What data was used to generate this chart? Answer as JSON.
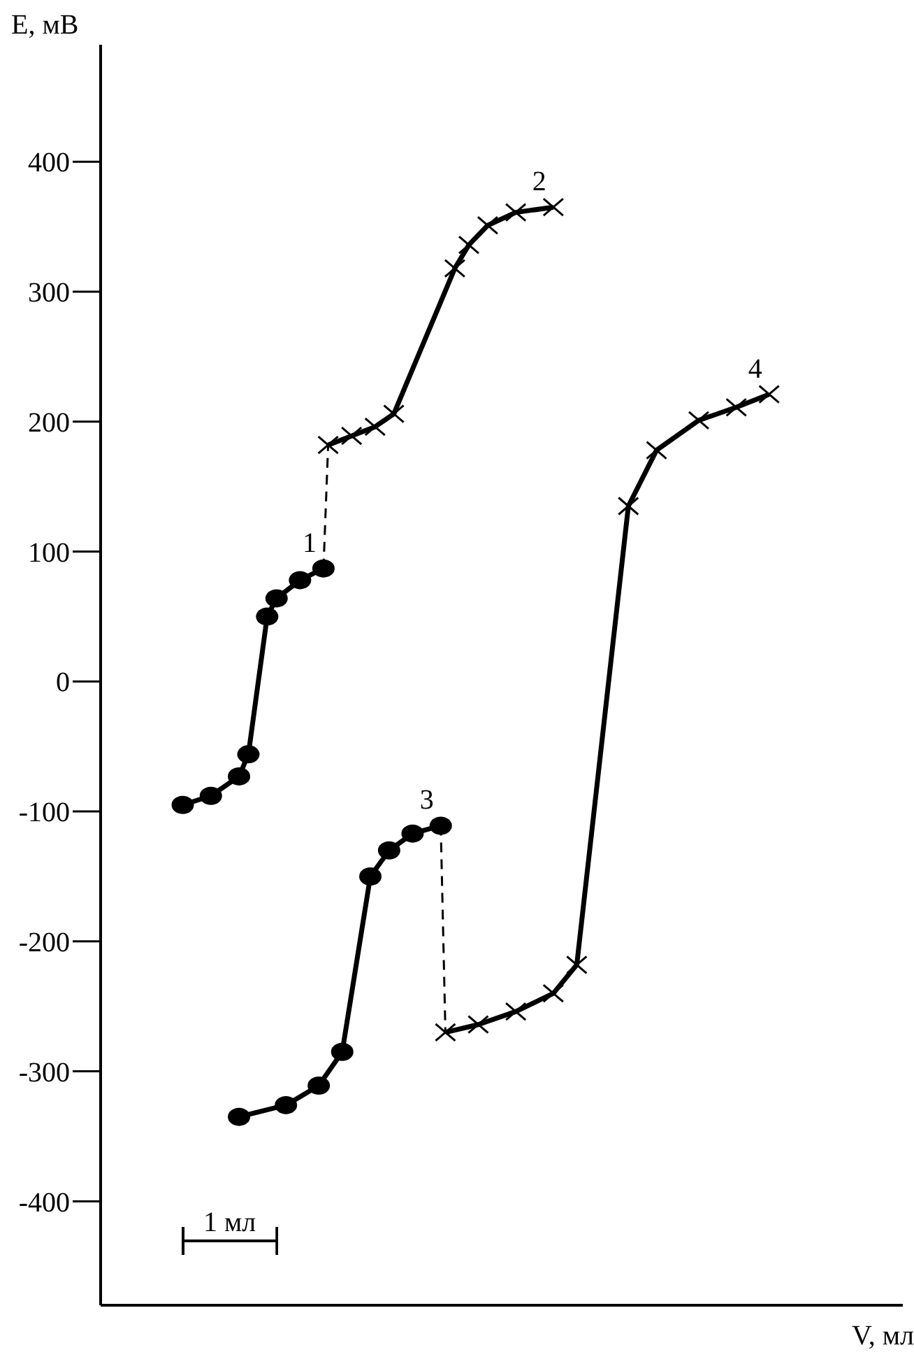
{
  "chart_data": {
    "type": "line",
    "xlabel": "V, мл",
    "ylabel": "E, мВ",
    "tick_labels": "y",
    "ylim": [
      -480,
      490
    ],
    "yticks": [
      -400,
      -300,
      -200,
      -100,
      0,
      100,
      200,
      300,
      400
    ],
    "legend": false,
    "annotations": [
      "1 мл"
    ],
    "categories": [
      null,
      null,
      null,
      null,
      null,
      null,
      null,
      null,
      null,
      null,
      null,
      null,
      null,
      null,
      null,
      null,
      null,
      null,
      null,
      null,
      null,
      null,
      null,
      null,
      null,
      null,
      null,
      null,
      null,
      null,
      null,
      null,
      null,
      null,
      null,
      null,
      null,
      null,
      null,
      null,
      null,
      null,
      null,
      null,
      null,
      null,
      null,
      null,
      null,
      null,
      null,
      null,
      null,
      null,
      null,
      null,
      null,
      null,
      null,
      null,
      null,
      null,
      null,
      null,
      null,
      null,
      null,
      null,
      null,
      null,
      null,
      null,
      null,
      null,
      null,
      null,
      null,
      null,
      null,
      null,
      null,
      null,
      null,
      null,
      null,
      null,
      null,
      null,
      null,
      null,
      null,
      null,
      null,
      null,
      null,
      null,
      null,
      null,
      null,
      null,
      null,
      null,
      null,
      null,
      null,
      null,
      null,
      null,
      null,
      null,
      null,
      null,
      null,
      null,
      null,
      null,
      null,
      null,
      null,
      null,
      null,
      null,
      null,
      null,
      null,
      null,
      null,
      null,
      null,
      null,
      null,
      null,
      null,
      null,
      null,
      null,
      null,
      null,
      null,
      null,
      null,
      null,
      null,
      null,
      null,
      null,
      null,
      null,
      null,
      null,
      null,
      null,
      null,
      null,
      null,
      null,
      null,
      null,
      null,
      null,
      null,
      null,
      null,
      null,
      null,
      null,
      null,
      null,
      null,
      null,
      null
    ],
    "series": [
      {
        "name": "1",
        "color": "#000000",
        "marker": "circle",
        "values": [
          null,
          null,
          null,
          null,
          null,
          null,
          null,
          null,
          null,
          null,
          null,
          null,
          null,
          null,
          null,
          null,
          null,
          -95,
          null,
          null,
          null,
          null,
          null,
          -88,
          null,
          null,
          null,
          null,
          null,
          -73,
          null,
          -56,
          null,
          null,
          null,
          50,
          null,
          64,
          null,
          null,
          null,
          null,
          78,
          null,
          null,
          null,
          null,
          87,
          null,
          null,
          null,
          null,
          null,
          null,
          null,
          null,
          null,
          null,
          null,
          null,
          null,
          null,
          null,
          null,
          null,
          null,
          null,
          null,
          null,
          null,
          null,
          null,
          null,
          null,
          null,
          null,
          null,
          null,
          null,
          null,
          null,
          null,
          null,
          null,
          null,
          null,
          null,
          null,
          null,
          null,
          null,
          null,
          null,
          null,
          null,
          null,
          null,
          null,
          null,
          null,
          null,
          null,
          null,
          null,
          null,
          null,
          null,
          null,
          null,
          null,
          null,
          null,
          null,
          null,
          null,
          null,
          null,
          null,
          null,
          null,
          null,
          null,
          null,
          null,
          null,
          null,
          null,
          null,
          null,
          null,
          null,
          null,
          null,
          null,
          null,
          null,
          null,
          null,
          null,
          null,
          null,
          null,
          null,
          null,
          null,
          null,
          null,
          null,
          null,
          null,
          null,
          null,
          null,
          null,
          null,
          null,
          null,
          null,
          null,
          null,
          null,
          null,
          null,
          null,
          null,
          null,
          null,
          null,
          null,
          null,
          null
        ]
      },
      {
        "color": "#000000",
        "line_style": "dashed",
        "values": [
          null,
          null,
          null,
          null,
          null,
          null,
          null,
          null,
          null,
          null,
          null,
          null,
          null,
          null,
          null,
          null,
          null,
          null,
          null,
          null,
          null,
          null,
          null,
          null,
          null,
          null,
          null,
          null,
          null,
          null,
          null,
          null,
          null,
          null,
          null,
          null,
          null,
          null,
          null,
          null,
          null,
          null,
          null,
          null,
          null,
          null,
          null,
          87,
          182,
          null,
          null,
          null,
          null,
          null,
          null,
          null,
          null,
          null,
          null,
          null,
          null,
          null,
          null,
          null,
          null,
          null,
          null,
          null,
          null,
          null,
          null,
          null,
          null,
          null,
          null,
          null,
          null,
          null,
          null,
          null,
          null,
          null,
          null,
          null,
          null,
          null,
          null,
          null,
          null,
          null,
          null,
          null,
          null,
          null,
          null,
          null,
          null,
          null,
          null,
          null,
          null,
          null,
          null,
          null,
          null,
          null,
          null,
          null,
          null,
          null,
          null,
          null,
          null,
          null,
          null,
          null,
          null,
          null,
          null,
          null,
          null,
          null,
          null,
          null,
          null,
          null,
          null,
          null,
          null,
          null,
          null,
          null,
          null,
          null,
          null,
          null,
          null,
          null,
          null,
          null,
          null,
          null,
          null,
          null,
          null,
          null,
          null,
          null,
          null,
          null,
          null,
          null,
          null,
          null,
          null,
          null,
          null,
          null,
          null,
          null,
          null,
          null,
          null,
          null,
          null,
          null,
          null,
          null,
          null,
          null,
          null
        ]
      },
      {
        "name": "2",
        "color": "#000000",
        "marker": "cross",
        "values": [
          null,
          null,
          null,
          null,
          null,
          null,
          null,
          null,
          null,
          null,
          null,
          null,
          null,
          null,
          null,
          null,
          null,
          null,
          null,
          null,
          null,
          null,
          null,
          null,
          null,
          null,
          null,
          null,
          null,
          null,
          null,
          null,
          null,
          null,
          null,
          null,
          null,
          null,
          null,
          null,
          null,
          null,
          null,
          null,
          null,
          null,
          null,
          null,
          182,
          null,
          null,
          null,
          null,
          189,
          null,
          null,
          null,
          null,
          196,
          null,
          null,
          null,
          206,
          null,
          null,
          null,
          null,
          null,
          null,
          null,
          null,
          null,
          null,
          null,
          null,
          318,
          null,
          null,
          336,
          null,
          null,
          null,
          351,
          null,
          null,
          null,
          null,
          null,
          361,
          null,
          null,
          null,
          null,
          null,
          null,
          null,
          365,
          null,
          null,
          null,
          null,
          null,
          null,
          null,
          null,
          null,
          null,
          null,
          null,
          null,
          null,
          null,
          null,
          null,
          null,
          null,
          null,
          null,
          null,
          null,
          null,
          null,
          null,
          null,
          null,
          null,
          null,
          null,
          null,
          null,
          null,
          null,
          null,
          null,
          null,
          null,
          null,
          null,
          null,
          null,
          null,
          null,
          null,
          null,
          null,
          null,
          null,
          null,
          null,
          null,
          null,
          null,
          null,
          null,
          null,
          null,
          null,
          null,
          null,
          null,
          null,
          null,
          null,
          null,
          null,
          null,
          null,
          null,
          null,
          null,
          null
        ]
      },
      {
        "name": "3",
        "color": "#000000",
        "marker": "circle",
        "values": [
          null,
          null,
          null,
          null,
          null,
          null,
          null,
          null,
          null,
          null,
          null,
          null,
          null,
          null,
          null,
          null,
          null,
          null,
          null,
          null,
          null,
          null,
          null,
          null,
          null,
          null,
          null,
          null,
          null,
          -335,
          null,
          null,
          null,
          null,
          null,
          null,
          null,
          null,
          null,
          -326,
          null,
          null,
          null,
          null,
          null,
          null,
          -311,
          null,
          null,
          null,
          null,
          -285,
          null,
          null,
          null,
          null,
          null,
          -150,
          null,
          null,
          null,
          -130,
          null,
          null,
          null,
          null,
          -117,
          null,
          null,
          null,
          null,
          null,
          -111,
          null,
          null,
          null,
          null,
          null,
          null,
          null,
          null,
          null,
          null,
          null,
          null,
          null,
          null,
          null,
          null,
          null,
          null,
          null,
          null,
          null,
          null,
          null,
          null,
          null,
          null,
          null,
          null,
          null,
          null,
          null,
          null,
          null,
          null,
          null,
          null,
          null,
          null,
          null,
          null,
          null,
          null,
          null,
          null,
          null,
          null,
          null,
          null,
          null,
          null,
          null,
          null,
          null,
          null,
          null,
          null,
          null,
          null,
          null,
          null,
          null,
          null,
          null,
          null,
          null,
          null,
          null,
          null,
          null,
          null,
          null,
          null,
          null,
          null,
          null,
          null,
          null,
          null,
          null,
          null,
          null,
          null,
          null,
          null,
          null,
          null,
          null,
          null,
          null,
          null,
          null,
          null,
          null,
          null,
          null,
          null,
          null,
          null
        ]
      },
      {
        "color": "#000000",
        "line_style": "dashed",
        "values": [
          null,
          null,
          null,
          null,
          null,
          null,
          null,
          null,
          null,
          null,
          null,
          null,
          null,
          null,
          null,
          null,
          null,
          null,
          null,
          null,
          null,
          null,
          null,
          null,
          null,
          null,
          null,
          null,
          null,
          null,
          null,
          null,
          null,
          null,
          null,
          null,
          null,
          null,
          null,
          null,
          null,
          null,
          null,
          null,
          null,
          null,
          null,
          null,
          null,
          null,
          null,
          null,
          null,
          null,
          null,
          null,
          null,
          null,
          null,
          null,
          null,
          null,
          null,
          null,
          null,
          null,
          null,
          null,
          null,
          null,
          null,
          null,
          -111,
          -270,
          null,
          null,
          null,
          null,
          null,
          null,
          null,
          null,
          null,
          null,
          null,
          null,
          null,
          null,
          null,
          null,
          null,
          null,
          null,
          null,
          null,
          null,
          null,
          null,
          null,
          null,
          null,
          null,
          null,
          null,
          null,
          null,
          null,
          null,
          null,
          null,
          null,
          null,
          null,
          null,
          null,
          null,
          null,
          null,
          null,
          null,
          null,
          null,
          null,
          null,
          null,
          null,
          null,
          null,
          null,
          null,
          null,
          null,
          null,
          null,
          null,
          null,
          null,
          null,
          null,
          null,
          null,
          null,
          null,
          null,
          null,
          null,
          null,
          null,
          null,
          null,
          null,
          null,
          null,
          null,
          null,
          null,
          null,
          null,
          null,
          null,
          null,
          null,
          null,
          null,
          null,
          null,
          null,
          null,
          null,
          null,
          null
        ]
      },
      {
        "name": "4",
        "color": "#000000",
        "marker": "cross",
        "values": [
          null,
          null,
          null,
          null,
          null,
          null,
          null,
          null,
          null,
          null,
          null,
          null,
          null,
          null,
          null,
          null,
          null,
          null,
          null,
          null,
          null,
          null,
          null,
          null,
          null,
          null,
          null,
          null,
          null,
          null,
          null,
          null,
          null,
          null,
          null,
          null,
          null,
          null,
          null,
          null,
          null,
          null,
          null,
          null,
          null,
          null,
          null,
          null,
          null,
          null,
          null,
          null,
          null,
          null,
          null,
          null,
          null,
          null,
          null,
          null,
          null,
          null,
          null,
          null,
          null,
          null,
          null,
          null,
          null,
          null,
          null,
          null,
          null,
          -270,
          null,
          null,
          null,
          null,
          null,
          null,
          -264,
          null,
          null,
          null,
          null,
          null,
          null,
          null,
          -254,
          null,
          null,
          null,
          null,
          null,
          null,
          null,
          -240,
          null,
          null,
          null,
          null,
          -218,
          null,
          null,
          null,
          null,
          null,
          null,
          null,
          null,
          null,
          null,
          135,
          null,
          null,
          null,
          null,
          null,
          178,
          null,
          null,
          null,
          null,
          null,
          null,
          null,
          null,
          201,
          null,
          null,
          null,
          null,
          null,
          null,
          null,
          211,
          null,
          null,
          null,
          null,
          null,
          null,
          221,
          null,
          null,
          null,
          null,
          null,
          null,
          null,
          null,
          null,
          null,
          null,
          null,
          null,
          null,
          null,
          null,
          null,
          null,
          null,
          null,
          null,
          null,
          null,
          null,
          null,
          null,
          null,
          null
        ]
      }
    ]
  }
}
